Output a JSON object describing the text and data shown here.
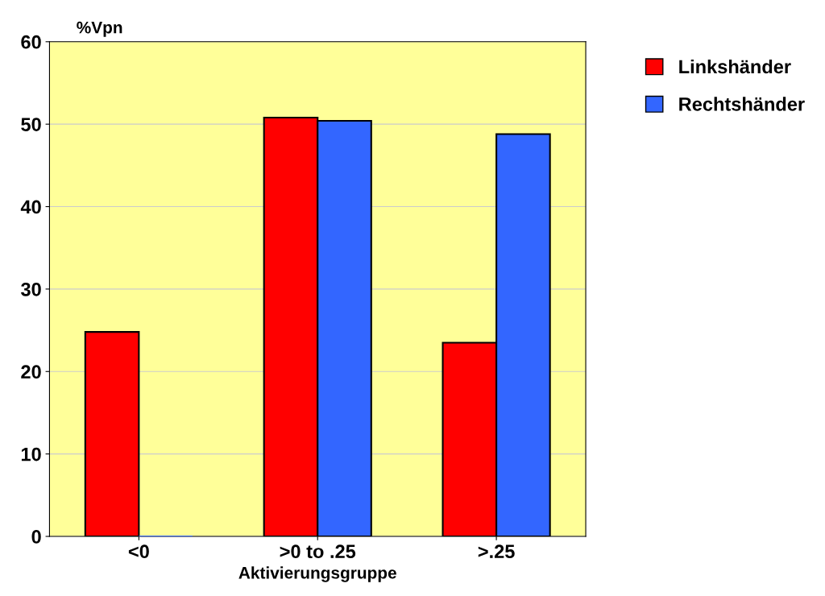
{
  "chart_data": {
    "type": "bar",
    "ylabel": "%Vpn",
    "xlabel": "Aktivierungsgruppe",
    "categories": [
      "<0",
      ">0 to .25",
      ">.25"
    ],
    "series": [
      {
        "name": "Linkshänder",
        "color": "#ff0000",
        "values": [
          24.8,
          50.8,
          23.5
        ]
      },
      {
        "name": "Rechtshänder",
        "color": "#3366ff",
        "values": [
          0,
          50.4,
          48.8
        ]
      }
    ],
    "ylim": [
      0,
      60
    ],
    "yticks": [
      0,
      10,
      20,
      30,
      40,
      50,
      60
    ],
    "grid": "y",
    "legend": "top right"
  }
}
